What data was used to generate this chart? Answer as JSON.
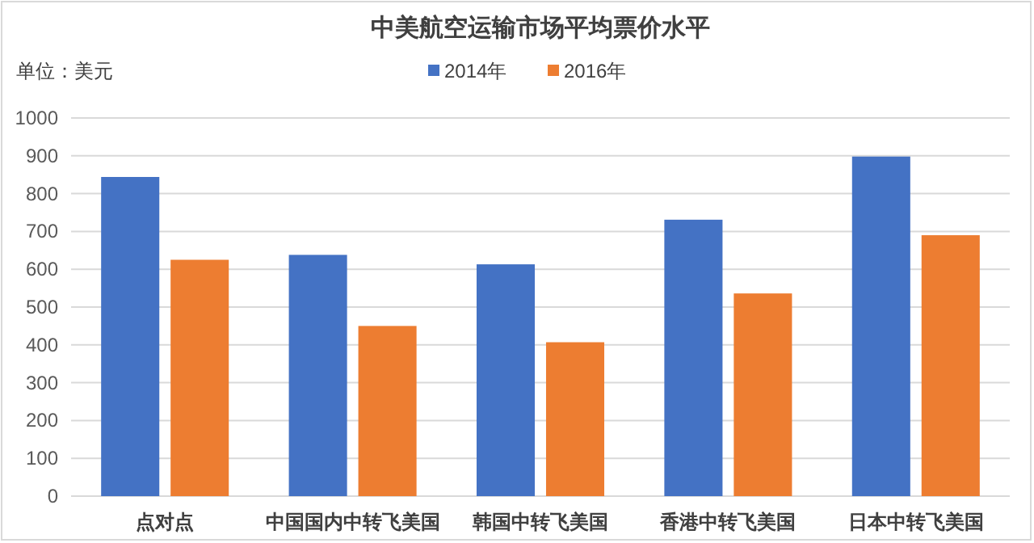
{
  "chart_data": {
    "type": "bar",
    "title": "中美航空运输市场平均票价水平",
    "ylabel": "单位：美元",
    "categories": [
      "点对点",
      "中国国内中转飞美国",
      "韩国中转飞美国",
      "香港中转飞美国",
      "日本中转飞美国"
    ],
    "series": [
      {
        "name": "2014年",
        "color": "#4472c4",
        "values": [
          844,
          638,
          613,
          731,
          898
        ]
      },
      {
        "name": "2016年",
        "color": "#ed7d31",
        "values": [
          625,
          450,
          407,
          536,
          690
        ]
      }
    ],
    "ylim": [
      0,
      1000
    ],
    "yticks": [
      0,
      100,
      200,
      300,
      400,
      500,
      600,
      700,
      800,
      900,
      1000
    ],
    "grid": "y",
    "legend": "top"
  }
}
